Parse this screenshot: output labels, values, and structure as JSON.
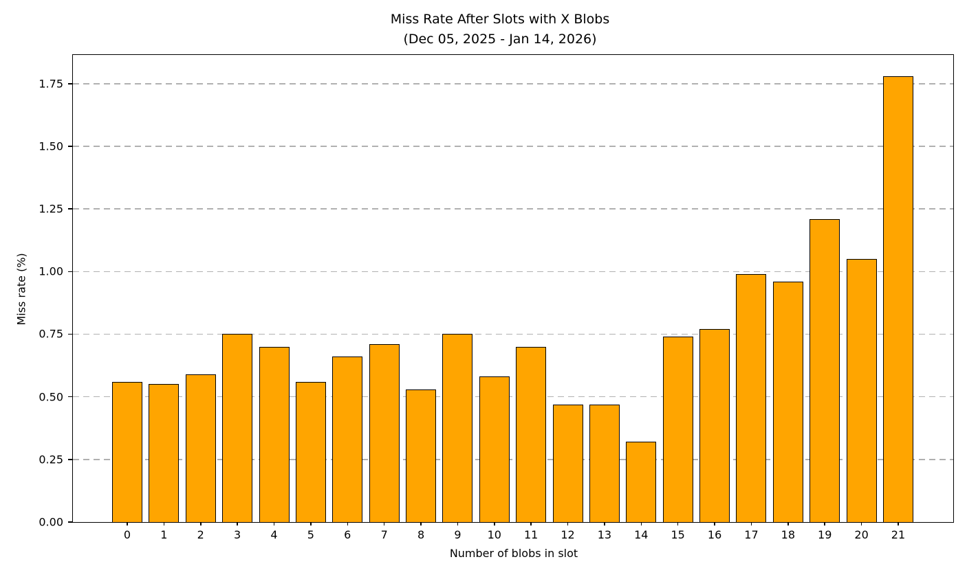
{
  "figure": {
    "title_line1": "Miss Rate After Slots with X Blobs",
    "title_line2": "(Dec 05, 2025 - Jan 14, 2026)"
  },
  "chart_data": {
    "type": "bar",
    "title": "Miss Rate After Slots with X Blobs",
    "subtitle": "(Dec 05, 2025 - Jan 14, 2026)",
    "xlabel": "Number of blobs in slot",
    "ylabel": "Miss rate (%)",
    "categories": [
      "0",
      "1",
      "2",
      "3",
      "4",
      "5",
      "6",
      "7",
      "8",
      "9",
      "10",
      "11",
      "12",
      "13",
      "14",
      "15",
      "16",
      "17",
      "18",
      "19",
      "20",
      "21"
    ],
    "values": [
      0.56,
      0.55,
      0.59,
      0.75,
      0.7,
      0.56,
      0.66,
      0.71,
      0.53,
      0.75,
      0.58,
      0.7,
      0.47,
      0.47,
      0.32,
      0.74,
      0.77,
      0.99,
      0.96,
      1.21,
      1.05,
      1.78
    ],
    "yticks": [
      0,
      0.25,
      0.5,
      0.75,
      1.0,
      1.25,
      1.5,
      1.75
    ],
    "ytick_labels": [
      "0.00",
      "0.25",
      "0.50",
      "0.75",
      "1.00",
      "1.25",
      "1.50",
      "1.75"
    ],
    "ylim": [
      0,
      1.87
    ],
    "grid": {
      "axis": "y",
      "style": "dashed",
      "color": "#b0b0b0"
    },
    "colors": {
      "bar_fill": "#FFA500",
      "bar_edge": "#000000",
      "spine": "#000000",
      "text": "#000000",
      "background": "#ffffff"
    },
    "legend_position": "none"
  }
}
